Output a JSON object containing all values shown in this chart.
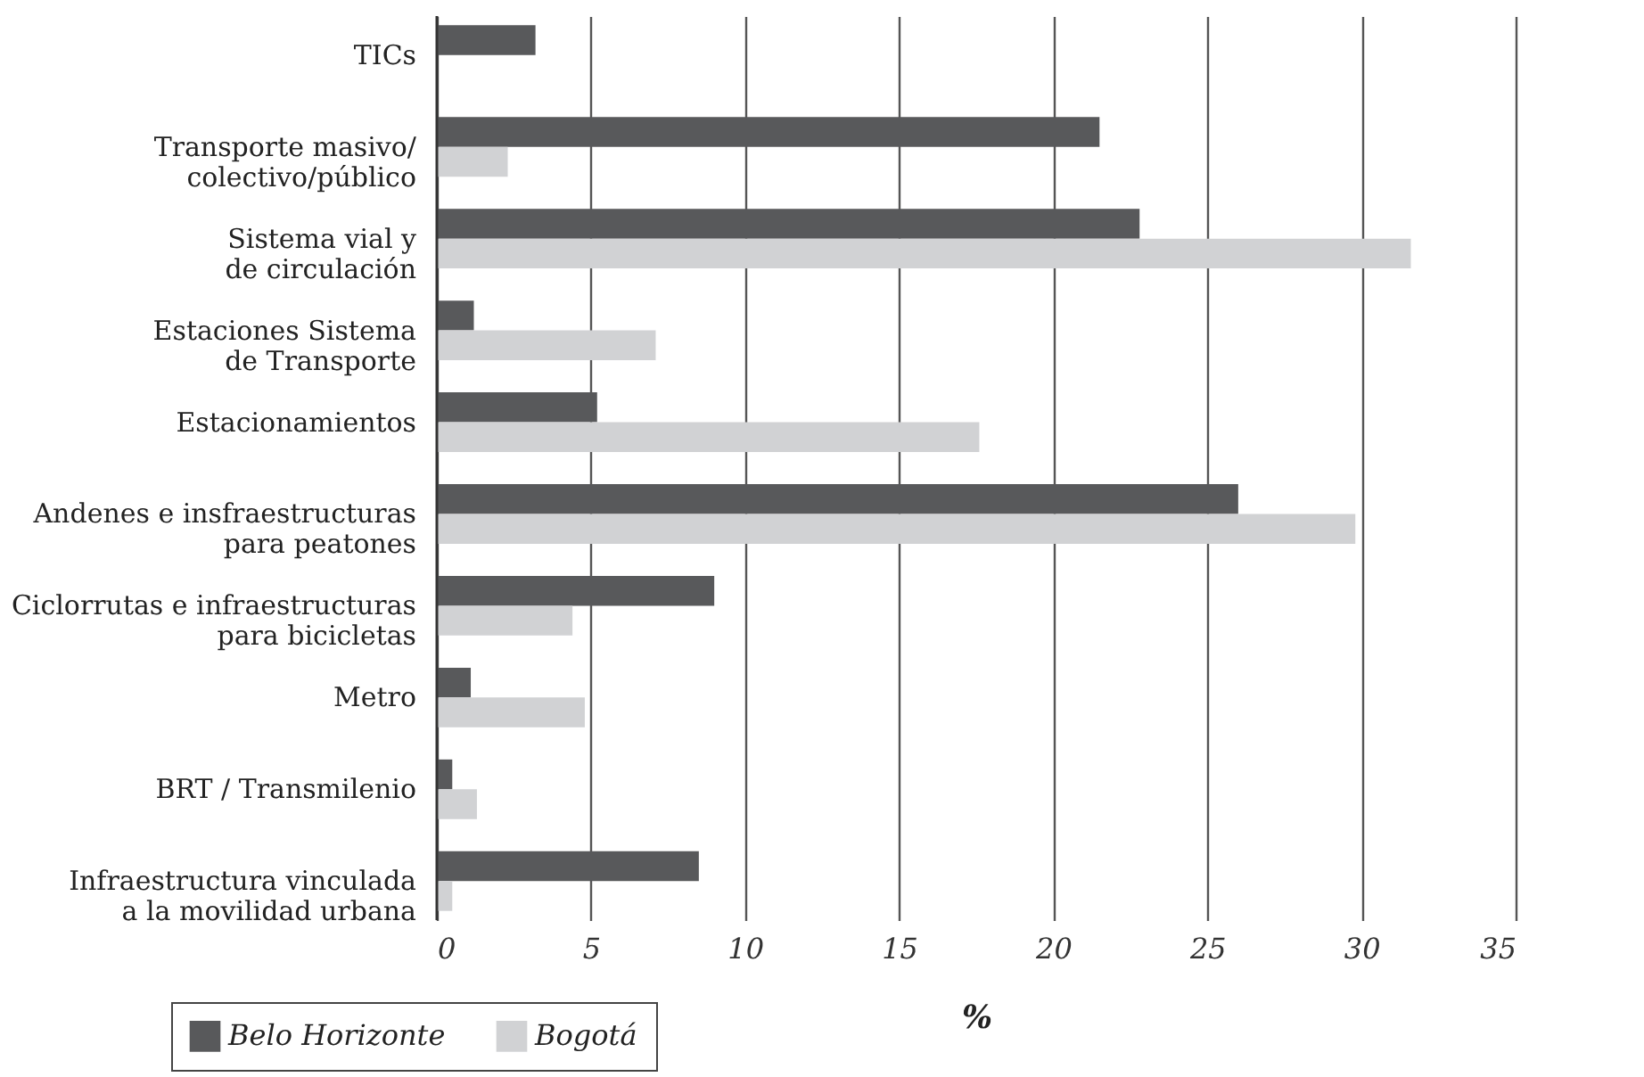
{
  "chart_data": {
    "type": "bar",
    "orientation": "horizontal",
    "xlabel": "%",
    "categories": [
      "TICs",
      "Transporte masivo/\ncolectivo/público",
      "Sistema vial y\nde circulación",
      "Estaciones Sistema\nde Transporte",
      "Estacionamientos",
      "Andenes e insfraestructuras\npara peatones",
      "Ciclorrutas e infraestructuras\npara bicicletas",
      "Metro",
      "BRT / Transmilenio",
      "Infraestructura vinculada\na la movilidad urbana"
    ],
    "series": [
      {
        "name": "Belo Horizonte",
        "color": "#58595b",
        "values": [
          3.2,
          21.5,
          22.8,
          1.2,
          5.2,
          26.0,
          9.0,
          1.1,
          0.5,
          8.5
        ]
      },
      {
        "name": "Bogotá",
        "color": "#d1d2d4",
        "values": [
          null,
          2.3,
          31.6,
          7.1,
          17.6,
          29.8,
          4.4,
          4.8,
          1.3,
          0.5
        ]
      }
    ],
    "xlim": [
      0,
      35
    ],
    "xticks": [
      0,
      5,
      10,
      15,
      20,
      25,
      30,
      35
    ],
    "grid": "x",
    "legend": "bottom left"
  }
}
